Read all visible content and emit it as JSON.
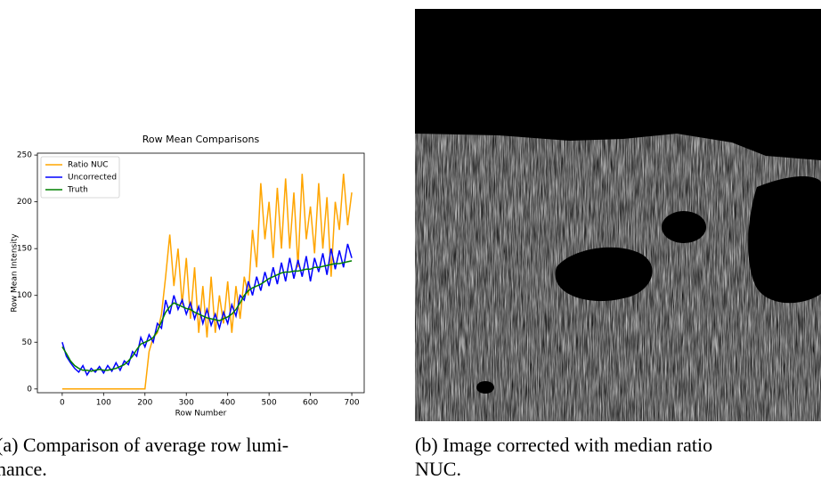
{
  "chart_data": {
    "type": "line",
    "title": "Row Mean Comparisons",
    "x_label": "Row Number",
    "y_label": "Row Mean Intensity",
    "x": [
      0,
      10,
      20,
      30,
      40,
      50,
      60,
      70,
      80,
      90,
      100,
      110,
      120,
      130,
      140,
      150,
      160,
      170,
      180,
      190,
      200,
      210,
      220,
      230,
      240,
      250,
      260,
      270,
      280,
      290,
      300,
      310,
      320,
      330,
      340,
      350,
      360,
      370,
      380,
      390,
      400,
      410,
      420,
      430,
      440,
      450,
      460,
      470,
      480,
      490,
      500,
      510,
      520,
      530,
      540,
      550,
      560,
      570,
      580,
      590,
      600,
      610,
      620,
      630,
      640,
      650,
      660,
      670,
      680,
      690,
      700
    ],
    "series": [
      {
        "name": "Ratio NUC",
        "color": "#ffa500",
        "values": [
          0,
          0,
          0,
          0,
          0,
          0,
          0,
          0,
          0,
          0,
          0,
          0,
          0,
          0,
          0,
          0,
          0,
          0,
          0,
          0,
          0,
          40,
          55,
          60,
          80,
          120,
          165,
          110,
          150,
          90,
          140,
          75,
          130,
          60,
          110,
          55,
          120,
          60,
          100,
          70,
          115,
          60,
          110,
          75,
          120,
          100,
          170,
          130,
          220,
          160,
          200,
          140,
          215,
          150,
          225,
          150,
          210,
          130,
          230,
          160,
          195,
          145,
          220,
          150,
          205,
          120,
          200,
          170,
          230,
          175,
          210
        ]
      },
      {
        "name": "Uncorrected",
        "color": "#0000ff",
        "values": [
          50,
          35,
          28,
          22,
          18,
          25,
          15,
          22,
          18,
          24,
          17,
          25,
          19,
          28,
          20,
          30,
          26,
          40,
          35,
          55,
          45,
          58,
          50,
          70,
          65,
          95,
          80,
          100,
          85,
          95,
          80,
          92,
          75,
          88,
          70,
          85,
          68,
          80,
          65,
          82,
          70,
          90,
          78,
          100,
          95,
          115,
          100,
          120,
          105,
          125,
          110,
          130,
          112,
          135,
          115,
          140,
          118,
          138,
          120,
          142,
          115,
          140,
          125,
          145,
          122,
          150,
          128,
          148,
          130,
          155,
          140
        ]
      },
      {
        "name": "Truth",
        "color": "#008000",
        "values": [
          45,
          38,
          30,
          25,
          22,
          20,
          20,
          19,
          20,
          21,
          20,
          20,
          21,
          22,
          24,
          26,
          30,
          35,
          42,
          48,
          50,
          52,
          55,
          62,
          72,
          82,
          88,
          92,
          90,
          88,
          86,
          85,
          82,
          80,
          78,
          76,
          75,
          74,
          73,
          75,
          77,
          80,
          85,
          92,
          100,
          105,
          108,
          110,
          112,
          115,
          118,
          120,
          122,
          124,
          125,
          125,
          126,
          126,
          127,
          128,
          128,
          130,
          130,
          131,
          132,
          133,
          134,
          134,
          135,
          136,
          137
        ]
      }
    ],
    "xlim": [
      -60,
      730
    ],
    "ylim": [
      -4,
      252
    ],
    "xticks": [
      0,
      100,
      200,
      300,
      400,
      500,
      600,
      700
    ],
    "yticks": [
      0,
      50,
      100,
      150,
      200,
      250
    ],
    "legend": "upper left"
  },
  "captions": {
    "a": [
      "(a) Comparison of average row lumi-",
      "nance."
    ],
    "b": [
      "(b) Image corrected with median ratio",
      "NUC."
    ]
  }
}
